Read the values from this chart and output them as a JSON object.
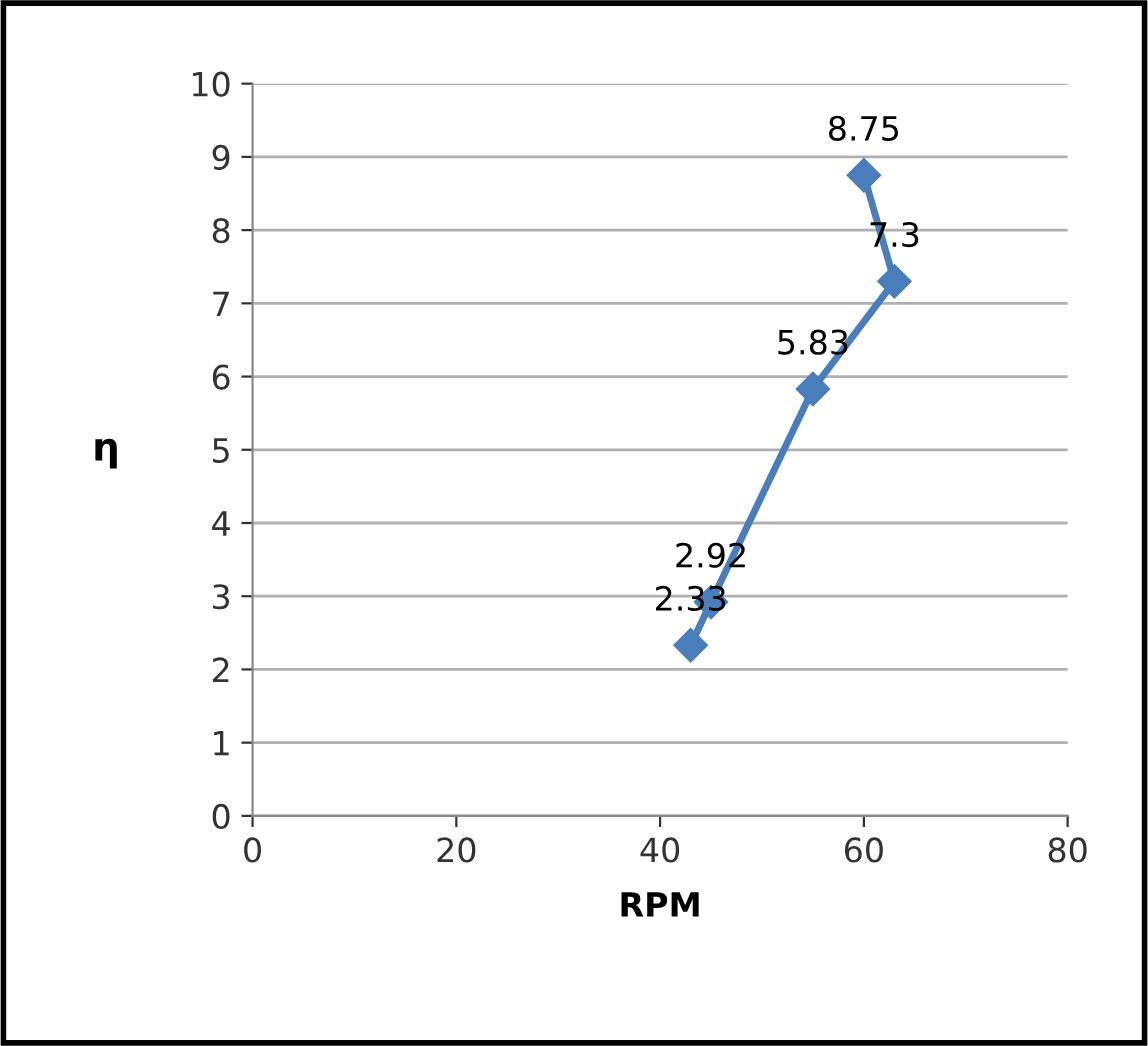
{
  "chart_data": {
    "type": "line",
    "xlabel": "RPM",
    "ylabel": "η",
    "x": [
      43,
      45,
      55,
      63,
      60
    ],
    "series": [
      {
        "color": "#4a7ebb",
        "values": [
          2.33,
          2.92,
          5.83,
          7.3,
          8.75
        ]
      }
    ],
    "xlim": [
      0,
      80
    ],
    "xticks": [
      0,
      20,
      40,
      60,
      80
    ],
    "ylim": [
      0,
      10
    ],
    "yticks": [
      0,
      1,
      2,
      3,
      4,
      5,
      6,
      7,
      8,
      9,
      10
    ],
    "grid": "y",
    "marker": "diamond",
    "line_style": "solid",
    "data_labels": true,
    "legend": false
  }
}
